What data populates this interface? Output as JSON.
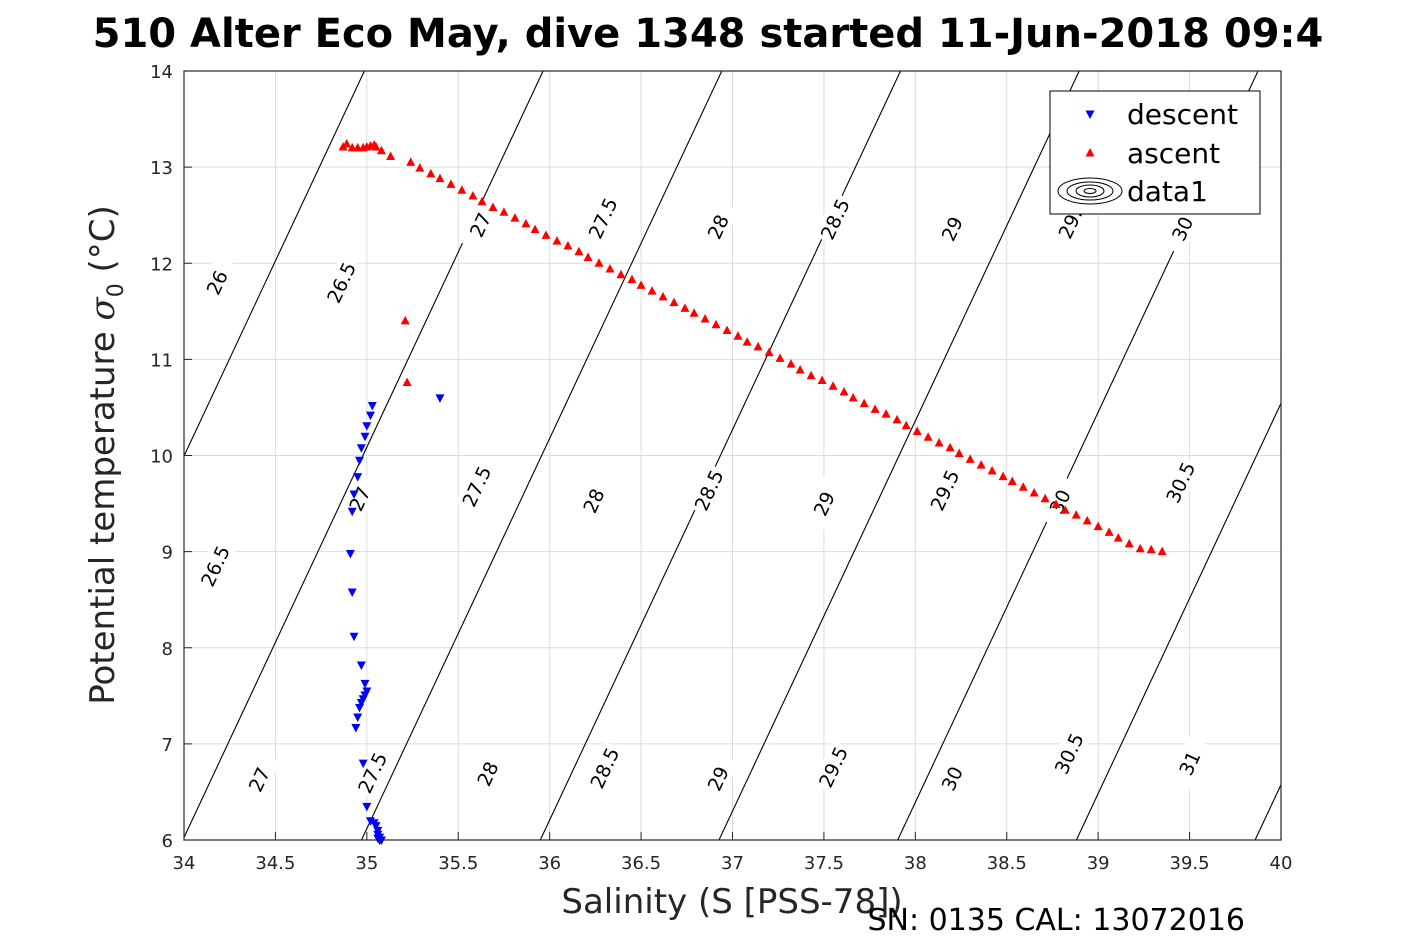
{
  "chart_data": {
    "type": "scatter",
    "title": "510 Alter Eco May, dive 1348 started 11-Jun-2018 09:4",
    "xlabel": "Salinity (S [PSS-78])",
    "ylabel": "Potential temperature σ 0 (°C)",
    "ylabel_main": "Potential temperature ",
    "ylabel_sym": "σ",
    "ylabel_sub": "0",
    "ylabel_unit": " (°C)",
    "footer": "SN: 0135  CAL: 13072016",
    "xlim": [
      34,
      40
    ],
    "ylim": [
      6,
      14
    ],
    "xticks": [
      "34",
      "34.5",
      "35",
      "35.5",
      "36",
      "36.5",
      "37",
      "37.5",
      "38",
      "38.5",
      "39",
      "39.5",
      "40"
    ],
    "yticks": [
      "6",
      "7",
      "8",
      "9",
      "10",
      "11",
      "12",
      "13",
      "14"
    ],
    "grid": true,
    "legend": {
      "placement": "top-right",
      "entries": [
        "descent",
        "ascent",
        "data1"
      ]
    },
    "contours": {
      "levels": [
        26,
        26.5,
        27,
        27.5,
        28,
        28.5,
        29,
        29.5,
        30,
        30.5,
        31
      ],
      "labels": [
        {
          "text": "26",
          "x": 34.18,
          "y": 11.8
        },
        {
          "text": "26.5",
          "x": 34.86,
          "y": 11.8
        },
        {
          "text": "26.5",
          "x": 34.17,
          "y": 8.85
        },
        {
          "text": "27",
          "x": 34.41,
          "y": 6.63
        },
        {
          "text": "27",
          "x": 35.62,
          "y": 12.4
        },
        {
          "text": "27",
          "x": 34.96,
          "y": 9.55
        },
        {
          "text": "27.5",
          "x": 35.03,
          "y": 6.7
        },
        {
          "text": "27.5",
          "x": 36.29,
          "y": 12.47
        },
        {
          "text": "27.5",
          "x": 35.6,
          "y": 9.68
        },
        {
          "text": "28",
          "x": 36.92,
          "y": 12.38
        },
        {
          "text": "28",
          "x": 36.24,
          "y": 9.53
        },
        {
          "text": "28",
          "x": 35.66,
          "y": 6.69
        },
        {
          "text": "28.5",
          "x": 37.56,
          "y": 12.46
        },
        {
          "text": "28.5",
          "x": 36.87,
          "y": 9.64
        },
        {
          "text": "28.5",
          "x": 36.3,
          "y": 6.75
        },
        {
          "text": "29",
          "x": 38.2,
          "y": 12.36
        },
        {
          "text": "29",
          "x": 37.5,
          "y": 9.5
        },
        {
          "text": "29",
          "x": 36.92,
          "y": 6.64
        },
        {
          "text": "29.5",
          "x": 38.86,
          "y": 12.47
        },
        {
          "text": "29.5",
          "x": 38.16,
          "y": 9.64
        },
        {
          "text": "29.5",
          "x": 37.55,
          "y": 6.76
        },
        {
          "text": "30",
          "x": 39.46,
          "y": 12.36
        },
        {
          "text": "30",
          "x": 38.79,
          "y": 9.52
        },
        {
          "text": "30",
          "x": 38.2,
          "y": 6.64
        },
        {
          "text": "30.5",
          "x": 39.45,
          "y": 9.72
        },
        {
          "text": "30.5",
          "x": 38.84,
          "y": 6.9
        },
        {
          "text": "31",
          "x": 39.5,
          "y": 6.8
        }
      ]
    },
    "series": [
      {
        "name": "descent",
        "color": "#0000ff",
        "marker": "triangle-down",
        "x": [
          35.03,
          35.02,
          35.0,
          34.99,
          34.97,
          34.96,
          34.95,
          34.93,
          34.92,
          34.91,
          35.4,
          34.92,
          34.93,
          34.97,
          34.99,
          35.0,
          34.99,
          34.98,
          34.97,
          34.96,
          34.95,
          34.94,
          34.98,
          35.0,
          35.02,
          35.04,
          35.05,
          35.06,
          35.07,
          35.06,
          35.07,
          35.08,
          35.06
        ],
        "y": [
          10.52,
          10.42,
          10.31,
          10.2,
          10.08,
          9.95,
          9.78,
          9.6,
          9.42,
          8.98,
          10.6,
          8.58,
          8.12,
          7.82,
          7.63,
          7.55,
          7.51,
          7.47,
          7.43,
          7.38,
          7.28,
          7.17,
          6.8,
          6.35,
          6.2,
          6.18,
          6.15,
          6.1,
          6.03,
          6.02,
          6.0,
          6.0,
          6.06
        ]
      },
      {
        "name": "ascent",
        "color": "#ff0000",
        "marker": "triangle-up",
        "x": [
          34.87,
          34.89,
          34.92,
          34.95,
          34.98,
          35.0,
          35.02,
          35.04,
          35.05,
          35.08,
          35.13,
          35.21,
          35.22,
          35.24,
          35.29,
          35.35,
          35.4,
          35.46,
          35.52,
          35.58,
          35.63,
          35.69,
          35.75,
          35.81,
          35.87,
          35.92,
          35.98,
          36.04,
          36.1,
          36.16,
          36.21,
          36.27,
          36.33,
          36.39,
          36.45,
          36.5,
          36.56,
          36.62,
          36.68,
          36.74,
          36.79,
          36.85,
          36.91,
          36.97,
          37.03,
          37.08,
          37.14,
          37.2,
          37.26,
          37.32,
          37.37,
          37.43,
          37.49,
          37.55,
          37.61,
          37.66,
          37.72,
          37.78,
          37.84,
          37.9,
          37.95,
          38.01,
          38.07,
          38.13,
          38.19,
          38.24,
          38.3,
          38.36,
          38.42,
          38.48,
          38.53,
          38.59,
          38.65,
          38.71,
          38.77,
          38.82,
          38.88,
          38.94,
          39.0,
          39.06,
          39.11,
          39.17,
          39.23,
          39.29,
          39.35
        ],
        "y": [
          13.21,
          13.24,
          13.2,
          13.2,
          13.2,
          13.21,
          13.22,
          13.23,
          13.21,
          13.17,
          13.11,
          11.4,
          10.76,
          13.05,
          12.99,
          12.93,
          12.88,
          12.82,
          12.76,
          12.7,
          12.64,
          12.58,
          12.53,
          12.47,
          12.41,
          12.35,
          12.29,
          12.23,
          12.18,
          12.12,
          12.06,
          12.0,
          11.94,
          11.88,
          11.83,
          11.77,
          11.71,
          11.65,
          11.59,
          11.53,
          11.48,
          11.42,
          11.36,
          11.3,
          11.24,
          11.18,
          11.13,
          11.07,
          11.01,
          10.95,
          10.89,
          10.83,
          10.78,
          10.72,
          10.66,
          10.6,
          10.54,
          10.48,
          10.43,
          10.37,
          10.31,
          10.25,
          10.19,
          10.13,
          10.08,
          10.02,
          9.96,
          9.9,
          9.84,
          9.78,
          9.73,
          9.67,
          9.61,
          9.55,
          9.49,
          9.43,
          9.38,
          9.32,
          9.26,
          9.2,
          9.14,
          9.08,
          9.03,
          9.02,
          9.0
        ]
      }
    ]
  }
}
